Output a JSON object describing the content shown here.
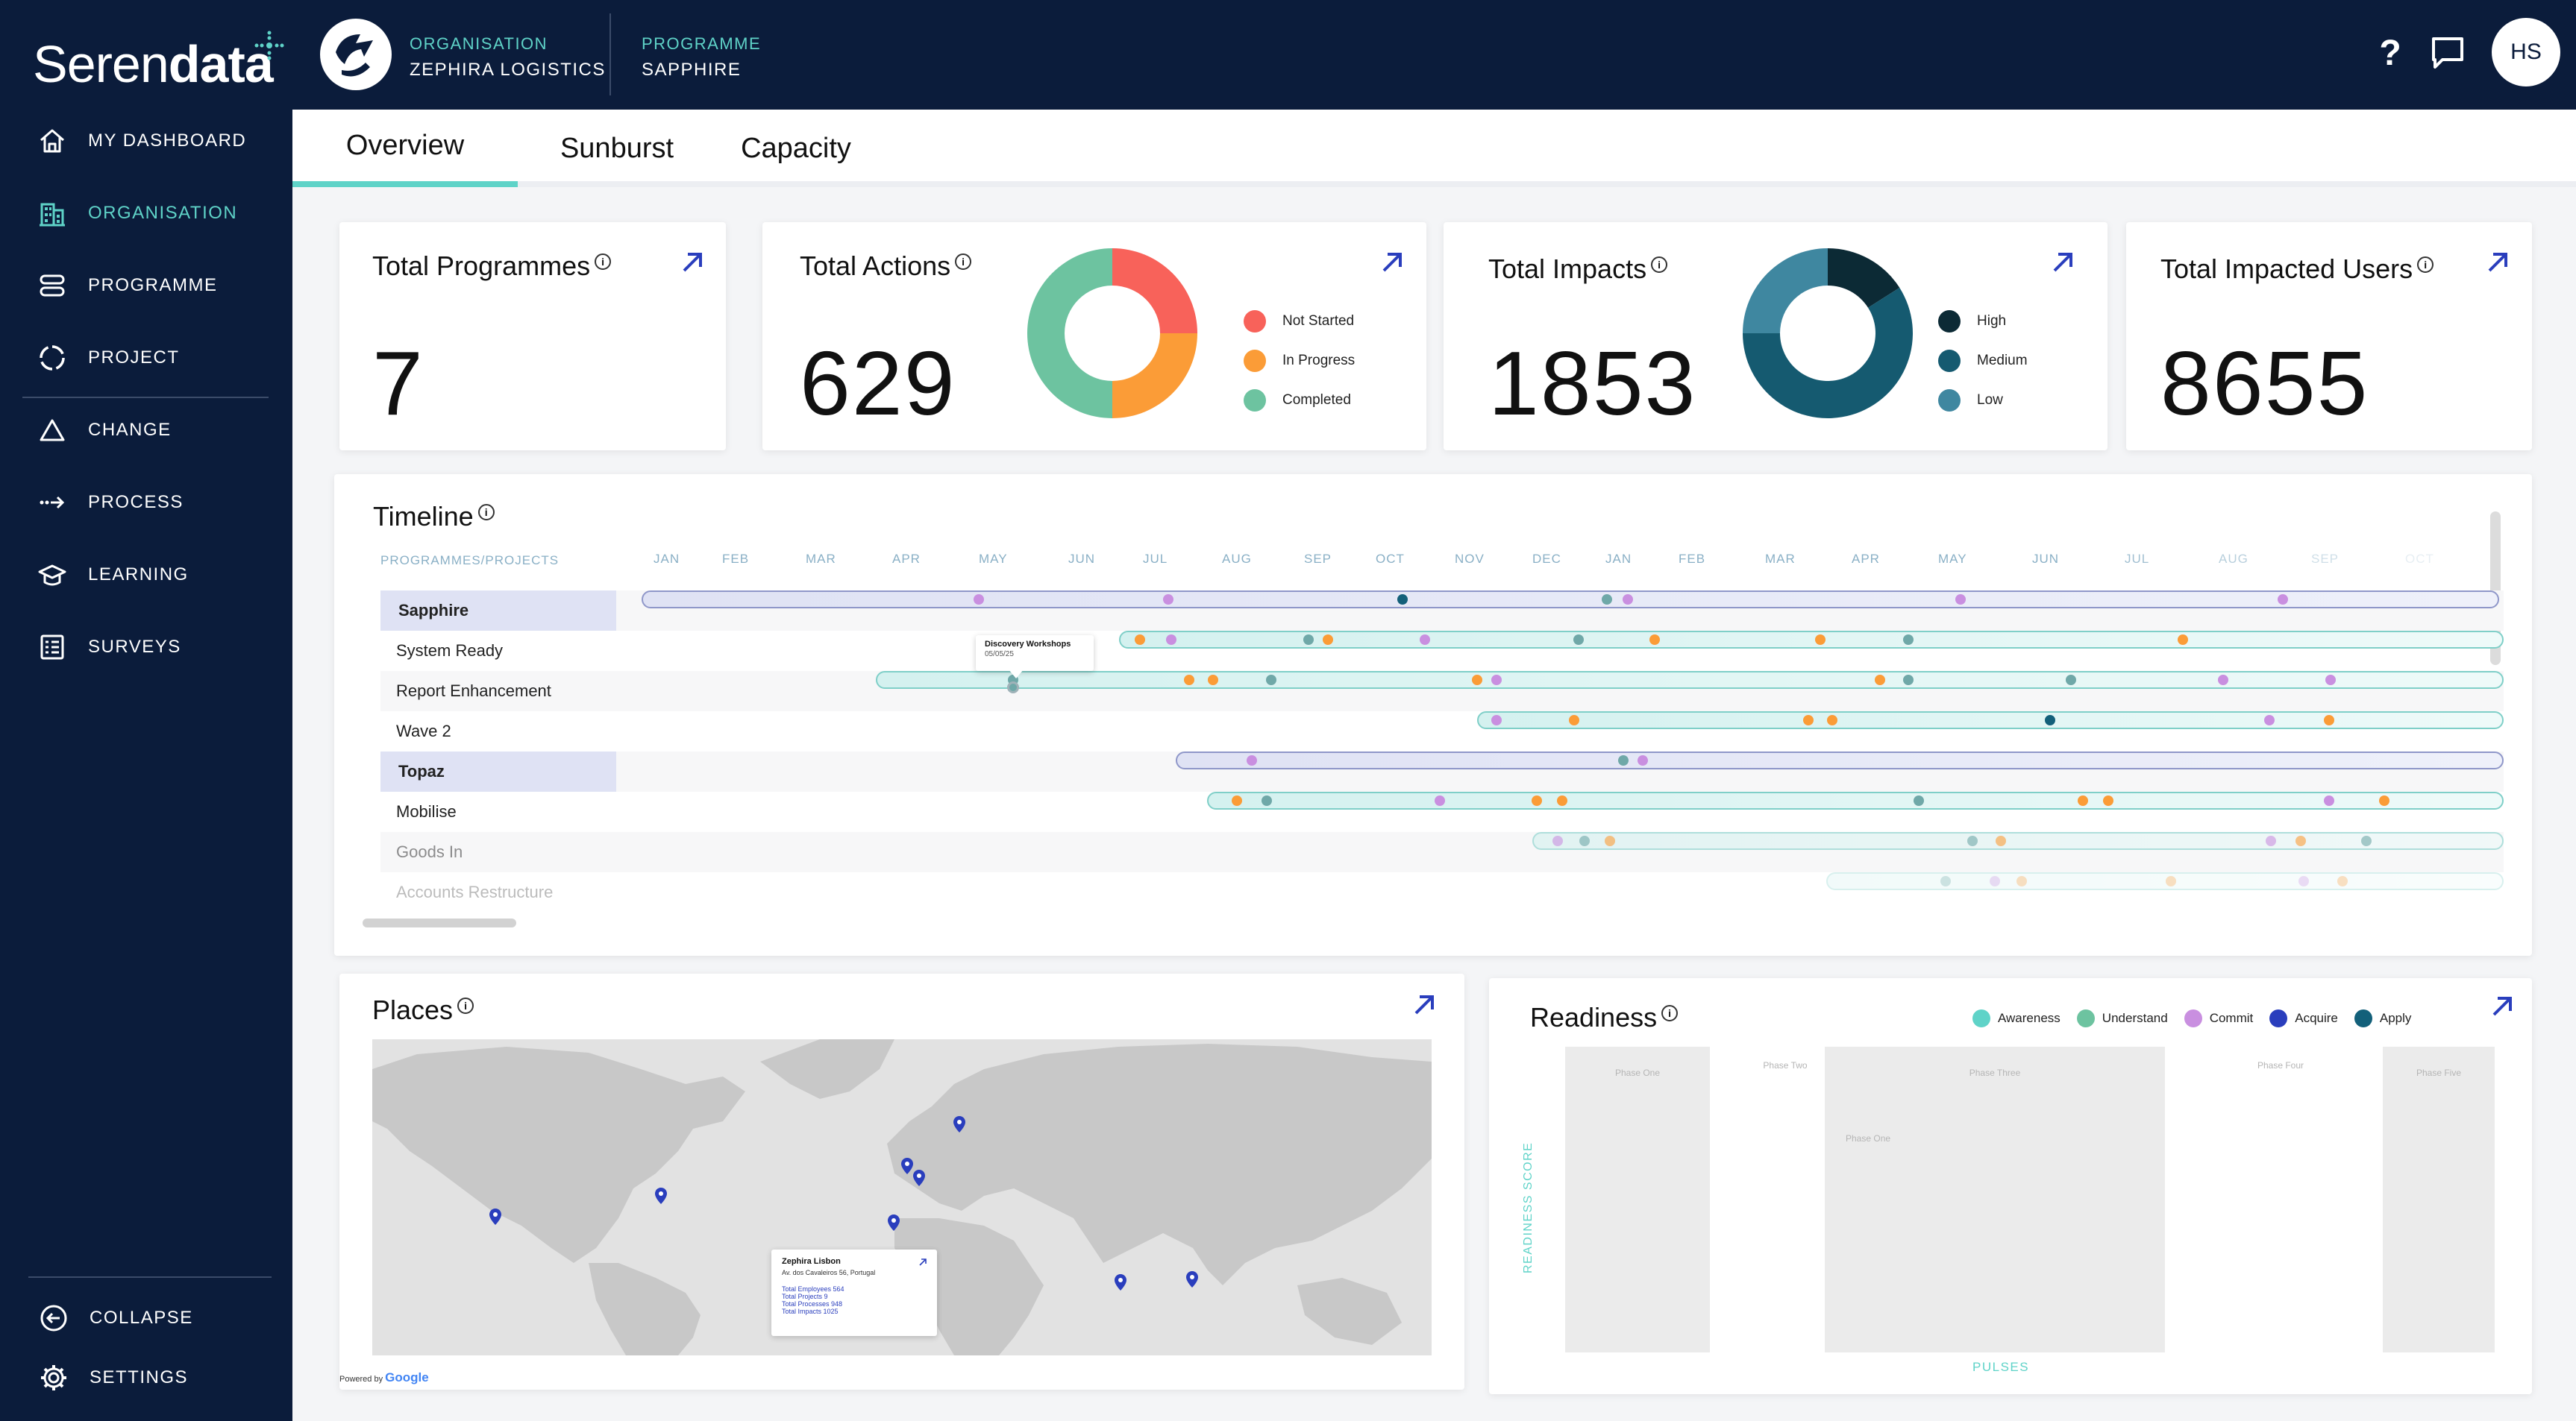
{
  "brand": {
    "prefix": "Seren",
    "suffix": "data"
  },
  "header": {
    "org_label": "ORGANISATION",
    "org_value": "ZEPHIRA LOGISTICS",
    "prog_label": "PROGRAMME",
    "prog_value": "SAPPHIRE",
    "help_icon": "question-icon",
    "chat_icon": "chat-icon",
    "avatar": "HS"
  },
  "sidebar": {
    "items": [
      {
        "label": "MY DASHBOARD",
        "icon": "home-icon"
      },
      {
        "label": "ORGANISATION",
        "icon": "building-icon",
        "active": true
      },
      {
        "label": "PROGRAMME",
        "icon": "stack-icon"
      },
      {
        "label": "PROJECT",
        "icon": "cycle-icon"
      },
      {
        "label": "CHANGE",
        "icon": "triangle-icon"
      },
      {
        "label": "PROCESS",
        "icon": "process-arrow-icon"
      },
      {
        "label": "LEARNING",
        "icon": "graduation-cap-icon"
      },
      {
        "label": "SURVEYS",
        "icon": "survey-list-icon"
      }
    ],
    "collapse": "COLLAPSE",
    "settings": "SETTINGS"
  },
  "tabs": [
    {
      "label": "Overview",
      "active": true
    },
    {
      "label": "Sunburst"
    },
    {
      "label": "Capacity"
    }
  ],
  "kpis": {
    "programmes": {
      "title": "Total Programmes",
      "value": "7"
    },
    "actions": {
      "title": "Total Actions",
      "value": "629",
      "legend": [
        "Not Started",
        "In Progress",
        "Completed"
      ],
      "colors": [
        "#f8625a",
        "#fb9c37",
        "#6dc3a0"
      ],
      "shares": [
        0.25,
        0.25,
        0.5
      ]
    },
    "impacts": {
      "title": "Total Impacts",
      "value": "1853",
      "legend": [
        "High",
        "Medium",
        "Low"
      ],
      "colors": [
        "#0c2a35",
        "#155a70",
        "#3f87a0"
      ],
      "shares": [
        0.16,
        0.59,
        0.25
      ]
    },
    "users": {
      "title": "Total Impacted Users",
      "value": "8655"
    }
  },
  "timeline": {
    "title": "Timeline",
    "column_header": "PROGRAMMES/PROJECTS",
    "months": [
      "JAN",
      "FEB",
      "MAR",
      "APR",
      "MAY",
      "JUN",
      "JUL",
      "AUG",
      "SEP",
      "OCT",
      "NOV",
      "DEC",
      "JAN",
      "FEB",
      "MAR",
      "APR",
      "MAY",
      "JUN",
      "JUL",
      "AUG",
      "SEP",
      "OCT"
    ],
    "rows": [
      {
        "label": "Sapphire",
        "type": "programme"
      },
      {
        "label": "System Ready",
        "type": "project"
      },
      {
        "label": "Report Enhancement",
        "type": "project"
      },
      {
        "label": "Wave 2",
        "type": "project"
      },
      {
        "label": "Topaz",
        "type": "programme"
      },
      {
        "label": "Mobilise",
        "type": "project"
      },
      {
        "label": "Goods In",
        "type": "project"
      },
      {
        "label": "Accounts Restructure",
        "type": "project"
      }
    ],
    "tooltip": {
      "title": "Discovery Workshops",
      "date": "05/05/25"
    }
  },
  "places": {
    "title": "Places",
    "popup": {
      "name": "Zephira Lisbon",
      "address": "Av. dos Cavaleiros 56, Portugal",
      "employees": "Total Employees 564",
      "projects": "Total Projects 9",
      "processes": "Total Processes 948",
      "impacts": "Total Impacts 1025"
    },
    "powered": "Powered by",
    "google": "Google"
  },
  "readiness": {
    "title": "Readiness",
    "legend": [
      {
        "label": "Awareness",
        "color": "#5fd3c8"
      },
      {
        "label": "Understand",
        "color": "#6dc3a0"
      },
      {
        "label": "Commit",
        "color": "#c98fe0"
      },
      {
        "label": "Acquire",
        "color": "#2a3ebd"
      },
      {
        "label": "Apply",
        "color": "#13607a"
      }
    ],
    "phases": [
      "Phase One",
      "Phase Two",
      "Phase Three",
      "Phase Four",
      "Phase Five"
    ],
    "inner_phase": "Phase One",
    "ylabel": "READINESS SCORE",
    "xlabel": "PULSES"
  }
}
